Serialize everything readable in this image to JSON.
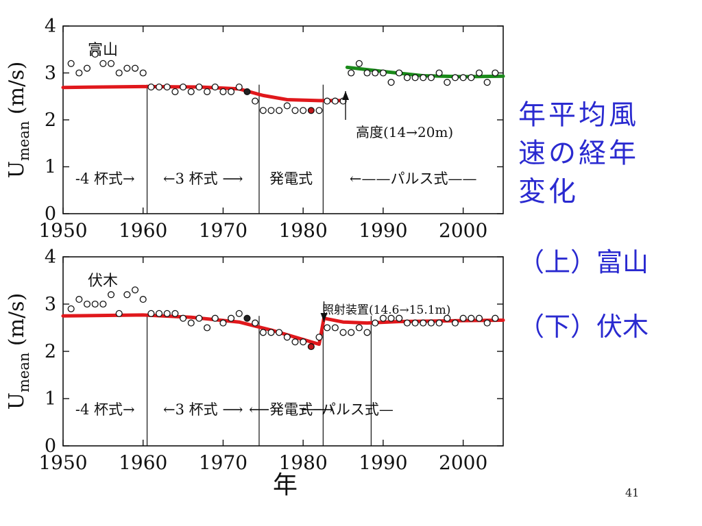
{
  "slide": {
    "title": "年平均風速の経年変化",
    "title_lines": [
      "年平均風",
      "速の経年",
      "変化"
    ],
    "sub1": "（上）富山",
    "sub2": "（下）伏木",
    "page_number": "41"
  },
  "colors": {
    "title_blue": "#2a2ad0",
    "trend_red": "#e0181c",
    "trend_green": "#1a8a1a",
    "ink": "#111111"
  },
  "chart_data": [
    {
      "type": "scatter",
      "station": "富山",
      "ylabel": "U",
      "ylabel_sub": "mean",
      "ylabel_unit": "(m/s)",
      "xlim": [
        1950,
        2005
      ],
      "ylim": [
        0,
        4
      ],
      "xticks": [
        1950,
        1960,
        1970,
        1980,
        1990,
        2000
      ],
      "yticks": [
        0,
        1,
        2,
        3,
        4
      ],
      "points": [
        [
          1951,
          3.2
        ],
        [
          1952,
          3.0
        ],
        [
          1953,
          3.1
        ],
        [
          1954,
          3.4
        ],
        [
          1955,
          3.2
        ],
        [
          1956,
          3.2
        ],
        [
          1957,
          3.0
        ],
        [
          1958,
          3.1
        ],
        [
          1959,
          3.1
        ],
        [
          1960,
          3.0
        ],
        [
          1961,
          2.7
        ],
        [
          1962,
          2.7
        ],
        [
          1963,
          2.7
        ],
        [
          1964,
          2.6
        ],
        [
          1965,
          2.7
        ],
        [
          1966,
          2.6
        ],
        [
          1967,
          2.7
        ],
        [
          1968,
          2.6
        ],
        [
          1969,
          2.7
        ],
        [
          1970,
          2.6
        ],
        [
          1971,
          2.6
        ],
        [
          1972,
          2.7
        ],
        [
          1973,
          2.6
        ],
        [
          1974,
          2.4
        ],
        [
          1975,
          2.2
        ],
        [
          1976,
          2.2
        ],
        [
          1977,
          2.2
        ],
        [
          1978,
          2.3
        ],
        [
          1979,
          2.2
        ],
        [
          1980,
          2.2
        ],
        [
          1981,
          2.2
        ],
        [
          1982,
          2.2
        ],
        [
          1983,
          2.4
        ],
        [
          1984,
          2.4
        ],
        [
          1985,
          2.4
        ],
        [
          1986,
          3.0
        ],
        [
          1987,
          3.2
        ],
        [
          1988,
          3.0
        ],
        [
          1989,
          3.0
        ],
        [
          1990,
          3.0
        ],
        [
          1991,
          2.8
        ],
        [
          1992,
          3.0
        ],
        [
          1993,
          2.9
        ],
        [
          1994,
          2.9
        ],
        [
          1995,
          2.9
        ],
        [
          1996,
          2.9
        ],
        [
          1997,
          3.0
        ],
        [
          1998,
          2.8
        ],
        [
          1999,
          2.9
        ],
        [
          2000,
          2.9
        ],
        [
          2001,
          2.9
        ],
        [
          2002,
          3.0
        ],
        [
          2003,
          2.8
        ],
        [
          2004,
          3.0
        ]
      ],
      "filled_points": [
        1973,
        1981
      ],
      "trend_red": [
        [
          1950,
          2.69
        ],
        [
          1960,
          2.71
        ],
        [
          1967,
          2.7
        ],
        [
          1972,
          2.66
        ],
        [
          1975,
          2.52
        ],
        [
          1978,
          2.43
        ],
        [
          1982,
          2.41
        ],
        [
          1985,
          2.41
        ]
      ],
      "trend_green": [
        [
          1985.5,
          3.12
        ],
        [
          1990,
          3.03
        ],
        [
          1995,
          2.94
        ],
        [
          2000,
          2.92
        ],
        [
          2005,
          2.93
        ]
      ],
      "dividers": [
        1960.5,
        1974.5,
        1982.5
      ],
      "step_arrow_x": 1985.3,
      "annotation": "高度(14→20m)",
      "period_labels": [
        "-4 杯式→",
        "←3 杯式 ⟶",
        "発電式",
        "←——パルス式——"
      ]
    },
    {
      "type": "scatter",
      "station": "伏木",
      "xlabel": "年",
      "ylabel": "U",
      "ylabel_sub": "mean",
      "ylabel_unit": "(m/s)",
      "xlim": [
        1950,
        2005
      ],
      "ylim": [
        0,
        4
      ],
      "xticks": [
        1950,
        1960,
        1970,
        1980,
        1990,
        2000
      ],
      "yticks": [
        0,
        1,
        2,
        3,
        4
      ],
      "points": [
        [
          1951,
          2.9
        ],
        [
          1952,
          3.1
        ],
        [
          1953,
          3.0
        ],
        [
          1954,
          3.0
        ],
        [
          1955,
          3.0
        ],
        [
          1956,
          3.2
        ],
        [
          1957,
          2.8
        ],
        [
          1958,
          3.2
        ],
        [
          1959,
          3.3
        ],
        [
          1960,
          3.1
        ],
        [
          1961,
          2.8
        ],
        [
          1962,
          2.8
        ],
        [
          1963,
          2.8
        ],
        [
          1964,
          2.8
        ],
        [
          1965,
          2.7
        ],
        [
          1966,
          2.6
        ],
        [
          1967,
          2.7
        ],
        [
          1968,
          2.5
        ],
        [
          1969,
          2.7
        ],
        [
          1970,
          2.6
        ],
        [
          1971,
          2.7
        ],
        [
          1972,
          2.8
        ],
        [
          1973,
          2.7
        ],
        [
          1974,
          2.6
        ],
        [
          1975,
          2.4
        ],
        [
          1976,
          2.4
        ],
        [
          1977,
          2.4
        ],
        [
          1978,
          2.3
        ],
        [
          1979,
          2.2
        ],
        [
          1980,
          2.2
        ],
        [
          1981,
          2.1
        ],
        [
          1982,
          2.3
        ],
        [
          1983,
          2.5
        ],
        [
          1984,
          2.5
        ],
        [
          1985,
          2.4
        ],
        [
          1986,
          2.4
        ],
        [
          1987,
          2.5
        ],
        [
          1988,
          2.4
        ],
        [
          1989,
          2.6
        ],
        [
          1990,
          2.7
        ],
        [
          1991,
          2.7
        ],
        [
          1992,
          2.7
        ],
        [
          1993,
          2.6
        ],
        [
          1994,
          2.6
        ],
        [
          1995,
          2.6
        ],
        [
          1996,
          2.6
        ],
        [
          1997,
          2.6
        ],
        [
          1998,
          2.7
        ],
        [
          1999,
          2.6
        ],
        [
          2000,
          2.7
        ],
        [
          2001,
          2.7
        ],
        [
          2002,
          2.7
        ],
        [
          2003,
          2.6
        ],
        [
          2004,
          2.7
        ]
      ],
      "filled_points": [
        1973,
        1981
      ],
      "trend_red": [
        [
          1950,
          2.75
        ],
        [
          1960,
          2.77
        ],
        [
          1966,
          2.72
        ],
        [
          1972,
          2.62
        ],
        [
          1976,
          2.45
        ],
        [
          1979,
          2.3
        ],
        [
          1982,
          2.15
        ],
        [
          1982.6,
          2.7
        ],
        [
          1985,
          2.62
        ],
        [
          1988,
          2.6
        ],
        [
          1992,
          2.63
        ],
        [
          2000,
          2.65
        ],
        [
          2005,
          2.66
        ]
      ],
      "trend_green": [],
      "dividers": [
        1960.5,
        1974.5,
        1982.5,
        1988.5
      ],
      "step_arrow_x": 1982.6,
      "annotation": "照射装置(14.6→15.1m)",
      "period_labels": [
        "-4 杯式→",
        "←3 杯式 ⟶",
        "⟵発電式⟶",
        "⟵パルス式—"
      ]
    }
  ]
}
